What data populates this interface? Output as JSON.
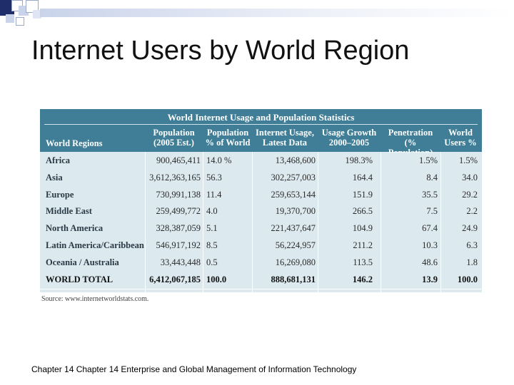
{
  "slide": {
    "title": "Internet Users by World Region",
    "footer": "Chapter 14 Chapter 14 Enterprise and Global Management of Information Technology",
    "source": "Source: www.internetworldstats.com."
  },
  "table": {
    "caption": "World Internet Usage and Population Statistics",
    "headers": [
      "World Regions",
      "Population\n(2005 Est.)",
      "Population\n% of World",
      "Internet Usage,\nLatest Data",
      "Usage Growth\n2000–2005",
      "Penetration\n(% Population)",
      "World\nUsers %"
    ],
    "rows": [
      [
        "Africa",
        "900,465,411",
        "14.0 %",
        "13,468,600",
        "198.3%",
        "1.5%",
        "1.5%"
      ],
      [
        "Asia",
        "3,612,363,165",
        "56.3",
        "302,257,003",
        "164.4",
        "8.4",
        "34.0"
      ],
      [
        "Europe",
        "730,991,138",
        "11.4",
        "259,653,144",
        "151.9",
        "35.5",
        "29.2"
      ],
      [
        "Middle East",
        "259,499,772",
        "4.0",
        "19,370,700",
        "266.5",
        "7.5",
        "2.2"
      ],
      [
        "North America",
        "328,387,059",
        "5.1",
        "221,437,647",
        "104.9",
        "67.4",
        "24.9"
      ],
      [
        "Latin America/Caribbean",
        "546,917,192",
        "8.5",
        "56,224,957",
        "211.2",
        "10.3",
        "6.3"
      ],
      [
        "Oceania / Australia",
        "33,443,448",
        "0.5",
        "16,269,080",
        "113.5",
        "48.6",
        "1.8"
      ]
    ],
    "total": [
      "WORLD TOTAL",
      "6,412,067,185",
      "100.0",
      "888,681,131",
      "146.2",
      "13.9",
      "100.0"
    ]
  },
  "colors": {
    "header_bg": "#3f7e96",
    "row_bg": "#dce9ef",
    "deco_dark": "#1f2d6b",
    "deco_light": "#c9d3ea"
  }
}
